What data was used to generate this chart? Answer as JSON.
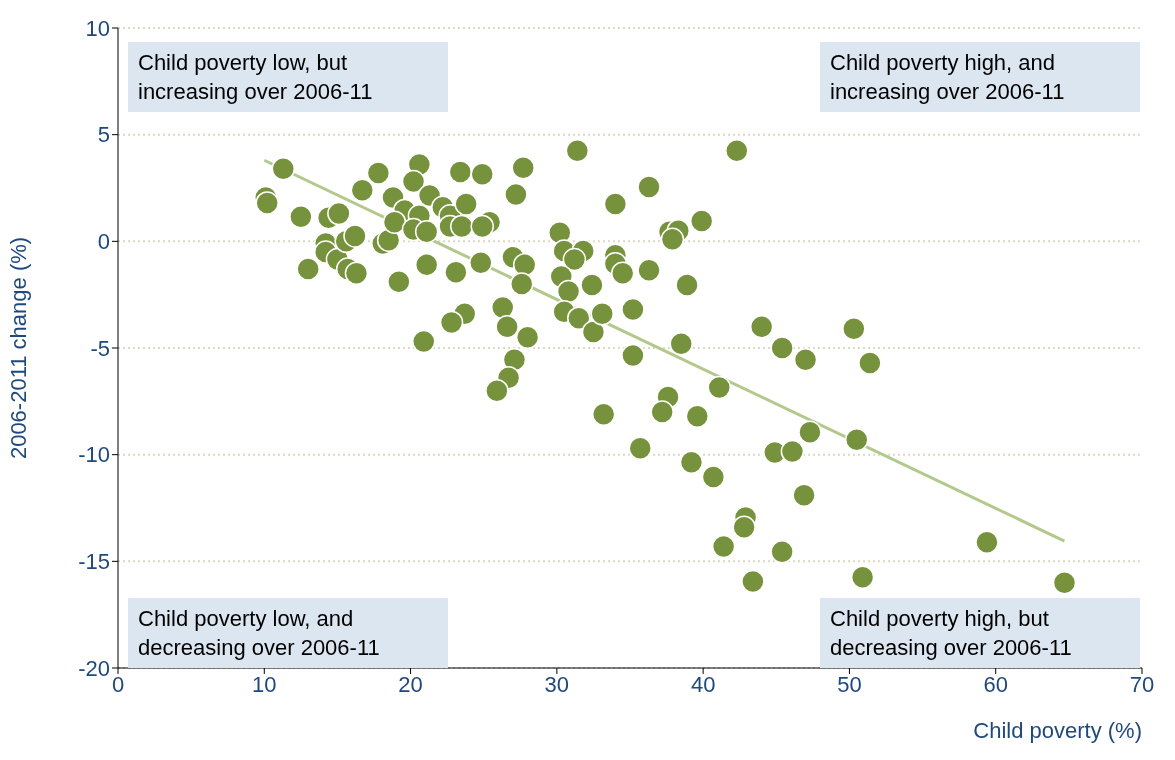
{
  "chart_data": {
    "type": "scatter",
    "xlabel": "Child poverty (%)",
    "ylabel": "2006-2011 change (%)",
    "xlim": [
      0,
      70
    ],
    "xticks": [
      0,
      10,
      20,
      30,
      40,
      50,
      60,
      70
    ],
    "ylim": [
      -20,
      10
    ],
    "yticks": [
      -20,
      -15,
      -10,
      -5,
      0,
      5,
      10
    ],
    "grid": "y",
    "legend": false,
    "annotations": [
      "Child poverty low, but increasing over 2006-11",
      "Child poverty high, and increasing over 2006-11",
      "Child poverty low, and decreasing over 2006-11",
      "Child poverty high, but decreasing over 2006-11"
    ],
    "series": [
      {
        "type": "scatter",
        "marker": "circle",
        "color": "#76923c",
        "x": [
          10.1,
          10.2,
          11.3,
          12.5,
          13.0,
          14.4,
          15.1,
          14.2,
          14.2,
          15.0,
          15.7,
          16.3,
          15.6,
          16.2,
          18.1,
          18.5,
          19.2,
          16.7,
          17.8,
          18.8,
          19.6,
          20.6,
          20.2,
          20.6,
          21.3,
          18.9,
          20.2,
          21.1,
          22.2,
          22.7,
          22.7,
          23.5,
          23.8,
          23.4,
          24.9,
          25.4,
          24.9,
          21.1,
          23.1,
          24.8,
          31.4,
          27.7,
          27.2,
          30.2,
          30.5,
          31.8,
          31.2,
          27.0,
          27.8,
          27.6,
          30.3,
          30.8,
          32.4,
          34.0,
          34.0,
          34.5,
          36.3,
          34.0,
          36.3,
          26.3,
          23.7,
          22.8,
          20.9,
          26.6,
          28.0,
          30.5,
          31.5,
          32.5,
          33.1,
          35.2,
          35.2,
          27.1,
          26.7,
          25.9,
          42.3,
          39.9,
          37.7,
          38.3,
          37.9,
          38.9,
          38.5,
          44.0,
          50.3,
          45.4,
          47.0,
          51.4,
          41.1,
          37.6,
          37.2,
          39.6,
          33.2,
          47.3,
          50.5,
          35.7,
          39.2,
          40.7,
          44.9,
          46.1,
          46.9,
          42.9,
          42.8,
          41.4,
          45.4,
          43.4,
          50.9,
          59.4,
          64.7
        ],
        "values": [
          2.05,
          1.8,
          3.4,
          1.15,
          -1.3,
          1.1,
          1.3,
          -0.1,
          -0.5,
          -0.85,
          -1.3,
          -1.5,
          0,
          0.25,
          -0.1,
          0.05,
          -1.9,
          2.4,
          3.2,
          2.05,
          1.45,
          3.6,
          2.8,
          1.2,
          2.15,
          0.9,
          0.55,
          0.45,
          1.6,
          1.2,
          0.7,
          0.7,
          1.75,
          3.25,
          3.15,
          0.9,
          0.7,
          -1.1,
          -1.45,
          -1.0,
          4.25,
          3.45,
          2.2,
          0.4,
          -0.45,
          -0.45,
          -0.85,
          -0.75,
          -1.1,
          -2.0,
          -1.65,
          -2.35,
          -2.05,
          -0.65,
          -1.05,
          -1.5,
          -1.35,
          1.75,
          2.55,
          -3.1,
          -3.4,
          -3.8,
          -4.7,
          -4.0,
          -4.5,
          -3.3,
          -3.6,
          -4.25,
          -3.4,
          -3.2,
          -5.35,
          -5.55,
          -6.4,
          -7.0,
          4.25,
          0.95,
          0.45,
          0.5,
          0.1,
          -2.05,
          -4.8,
          -4.0,
          -4.1,
          -5.0,
          -5.55,
          -5.7,
          -6.85,
          -7.3,
          -8.0,
          -8.2,
          -8.1,
          -8.95,
          -9.3,
          -9.7,
          -10.35,
          -11.05,
          -9.9,
          -9.85,
          -11.9,
          -12.95,
          -13.4,
          -14.3,
          -14.55,
          -15.95,
          -15.75,
          -14.1,
          -16.0
        ]
      },
      {
        "type": "line",
        "color": "#b3c98c",
        "x": [
          10.0,
          64.7
        ],
        "values": [
          3.8,
          -14.05
        ]
      }
    ]
  }
}
